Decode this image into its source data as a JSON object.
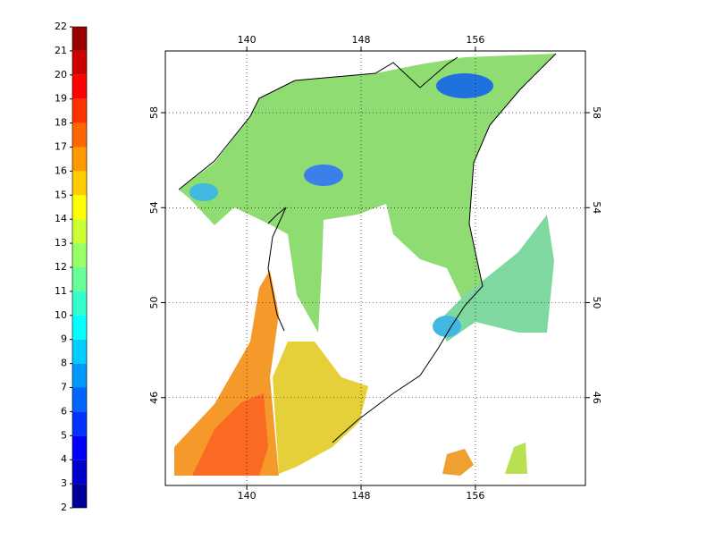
{
  "colorbar": {
    "ticks": [
      2,
      3,
      4,
      5,
      6,
      7,
      8,
      9,
      10,
      11,
      12,
      13,
      14,
      15,
      16,
      17,
      18,
      19,
      20,
      21,
      22
    ],
    "range": [
      2,
      22
    ]
  },
  "map": {
    "lon_range": [
      134.3,
      163.7
    ],
    "lat_range": [
      42.3,
      60.6
    ],
    "lon_ticks": [
      140,
      148,
      156
    ],
    "lat_ticks": [
      46,
      50,
      54,
      58
    ]
  }
}
